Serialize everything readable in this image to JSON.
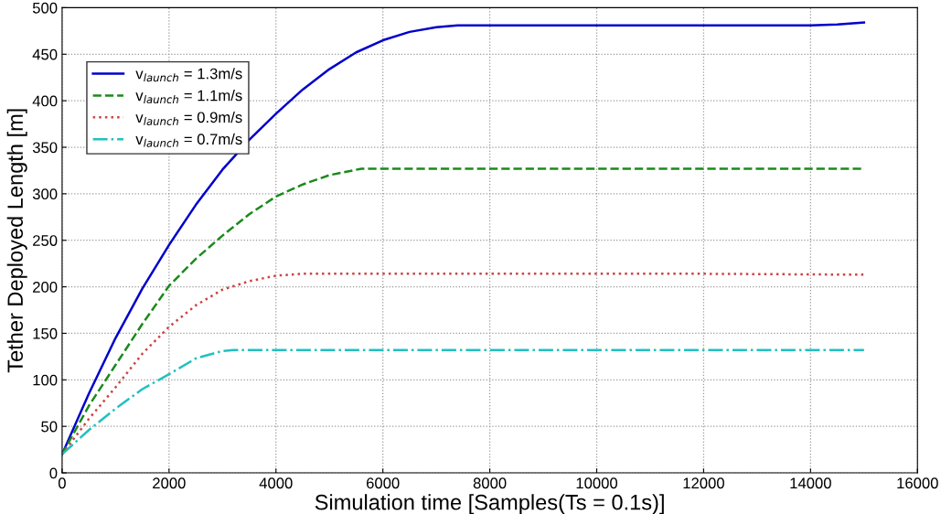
{
  "chart_data": {
    "type": "line",
    "xlabel": "Simulation time [Samples(Ts = 0.1s)]",
    "ylabel": "Tether Deployed Length [m]",
    "xlim": [
      0,
      16000
    ],
    "ylim": [
      0,
      500
    ],
    "xticks": [
      0,
      2000,
      4000,
      6000,
      8000,
      10000,
      12000,
      14000,
      16000
    ],
    "yticks": [
      0,
      50,
      100,
      150,
      200,
      250,
      300,
      350,
      400,
      450,
      500
    ],
    "grid": true,
    "legend": "top left",
    "marker": "none",
    "series": [
      {
        "name": "v$_{launch}$ = 1.3m/s",
        "color": "#0000cc",
        "line_style": "solid",
        "x": [
          0,
          500,
          1000,
          1500,
          2000,
          2500,
          3000,
          3500,
          4000,
          4500,
          5000,
          5500,
          6000,
          6500,
          7000,
          7400,
          8000,
          10000,
          12000,
          14000,
          14500,
          15000
        ],
        "values": [
          20,
          85,
          145,
          198,
          245,
          288,
          326,
          358,
          386,
          412,
          434,
          452,
          465,
          474,
          479,
          481,
          481,
          481,
          481,
          481,
          482,
          484
        ]
      },
      {
        "name": "v$_{launch}$ = 1.1m/s",
        "color": "#1a8a1a",
        "line_style": "dashed",
        "x": [
          0,
          500,
          1000,
          1500,
          2000,
          2500,
          3000,
          3500,
          4000,
          4500,
          5000,
          5600,
          8000,
          10000,
          12000,
          15000
        ],
        "values": [
          20,
          72,
          116,
          160,
          201,
          230,
          255,
          278,
          297,
          310,
          320,
          327,
          327,
          327,
          327,
          327
        ]
      },
      {
        "name": "v$_{launch}$ = 0.9m/s",
        "color": "#cc4444",
        "line_style": "dotted",
        "x": [
          0,
          500,
          1000,
          1500,
          2000,
          2500,
          3000,
          3500,
          4000,
          4500,
          8000,
          12000,
          15000
        ],
        "values": [
          20,
          58,
          92,
          128,
          157,
          180,
          197,
          206,
          212,
          214,
          214,
          214,
          213
        ]
      },
      {
        "name": "v$_{launch}$ = 0.7m/s",
        "color": "#22c0c0",
        "line_style": "dashdot",
        "x": [
          0,
          500,
          1000,
          1500,
          2000,
          2500,
          3000,
          3200,
          8000,
          12000,
          15000
        ],
        "values": [
          20,
          46,
          69,
          90,
          106,
          123,
          131,
          132,
          132,
          132,
          132
        ]
      }
    ]
  }
}
